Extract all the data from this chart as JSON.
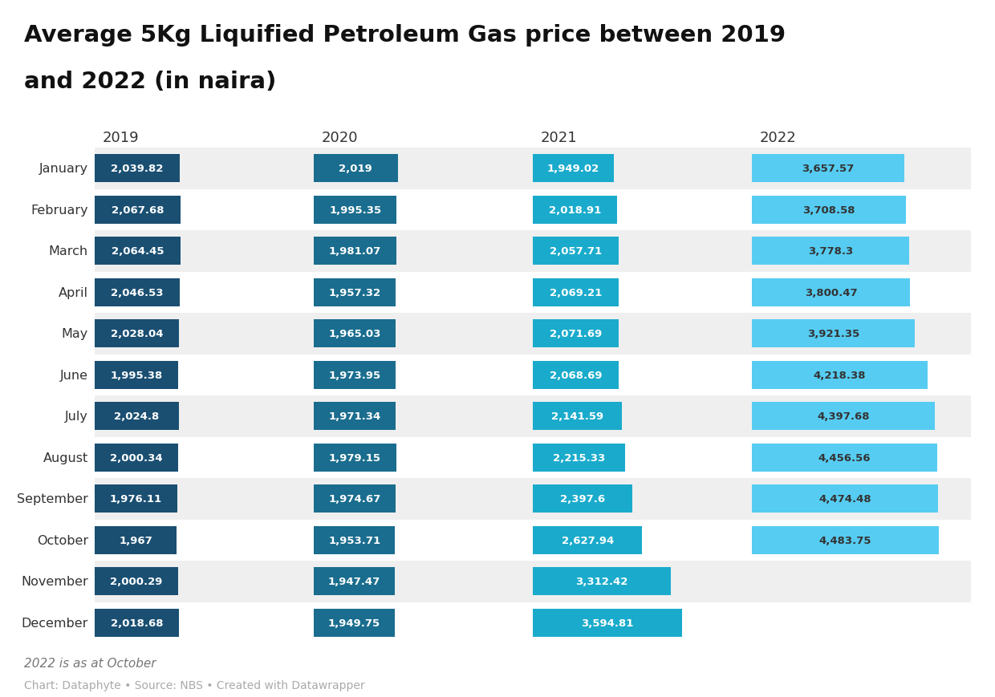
{
  "title_line1": "Average 5Kg Liquified Petroleum Gas price between 2019",
  "title_line2": "and 2022 (in naira)",
  "months": [
    "January",
    "February",
    "March",
    "April",
    "May",
    "June",
    "July",
    "August",
    "September",
    "October",
    "November",
    "December"
  ],
  "years": [
    "2019",
    "2020",
    "2021",
    "2022"
  ],
  "data": {
    "2019": [
      2039.82,
      2067.68,
      2064.45,
      2046.53,
      2028.04,
      1995.38,
      2024.8,
      2000.34,
      1976.11,
      1967.0,
      2000.29,
      2018.68
    ],
    "2020": [
      2019.0,
      1995.35,
      1981.07,
      1957.32,
      1965.03,
      1973.95,
      1971.34,
      1979.15,
      1974.67,
      1953.71,
      1947.47,
      1949.75
    ],
    "2021": [
      1949.02,
      2018.91,
      2057.71,
      2069.21,
      2071.69,
      2068.69,
      2141.59,
      2215.33,
      2397.6,
      2627.94,
      3312.42,
      3594.81
    ],
    "2022": [
      3657.57,
      3708.58,
      3778.3,
      3800.47,
      3921.35,
      4218.38,
      4397.68,
      4456.56,
      4474.48,
      4483.75,
      null,
      null
    ]
  },
  "bar_colors": {
    "2019": "#1a4f72",
    "2020": "#1a6d8e",
    "2021": "#1aabcc",
    "2022": "#56ccf2"
  },
  "bar_text_colors": {
    "2019": "#ffffff",
    "2020": "#ffffff",
    "2021": "#ffffff",
    "2022": "#333333"
  },
  "bg_color": "#ffffff",
  "row_colors": [
    "#efefef",
    "#ffffff"
  ],
  "footnote": "2022 is as at October",
  "source": "Chart: Dataphyte • Source: NBS • Created with Datawrapper",
  "scale_max": 5000
}
